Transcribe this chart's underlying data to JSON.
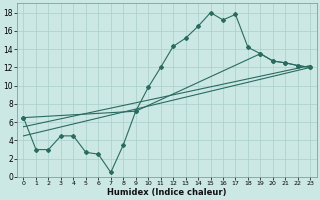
{
  "xlabel": "Humidex (Indice chaleur)",
  "background_color": "#cce8e5",
  "grid_color": "#aacfcc",
  "line_color": "#2a6b60",
  "xlim": [
    -0.5,
    23.5
  ],
  "ylim": [
    0,
    19
  ],
  "xticks": [
    0,
    1,
    2,
    3,
    4,
    5,
    6,
    7,
    8,
    9,
    10,
    11,
    12,
    13,
    14,
    15,
    16,
    17,
    18,
    19,
    20,
    21,
    22,
    23
  ],
  "yticks": [
    0,
    2,
    4,
    6,
    8,
    10,
    12,
    14,
    16,
    18
  ],
  "line1_x": [
    0,
    1,
    2,
    3,
    4,
    5,
    6,
    7,
    8,
    9,
    10,
    11,
    12,
    13,
    14,
    15,
    16,
    17,
    18,
    19,
    20,
    21,
    22,
    23
  ],
  "line1_y": [
    6.5,
    3.0,
    3.0,
    4.5,
    4.5,
    2.7,
    2.5,
    0.5,
    3.5,
    7.2,
    9.8,
    12.0,
    14.3,
    15.2,
    16.5,
    18.0,
    17.2,
    17.8,
    14.2,
    13.5,
    12.7,
    12.5,
    12.2,
    12.0
  ],
  "line2_x": [
    0,
    9,
    19,
    20,
    21,
    22,
    23
  ],
  "line2_y": [
    6.5,
    7.2,
    13.5,
    12.7,
    12.5,
    12.2,
    12.0
  ],
  "line3_x": [
    0,
    23
  ],
  "line3_y": [
    5.5,
    12.2
  ],
  "line4_x": [
    0,
    23
  ],
  "line4_y": [
    4.5,
    12.0
  ],
  "figsize": [
    3.2,
    2.0
  ],
  "dpi": 100
}
